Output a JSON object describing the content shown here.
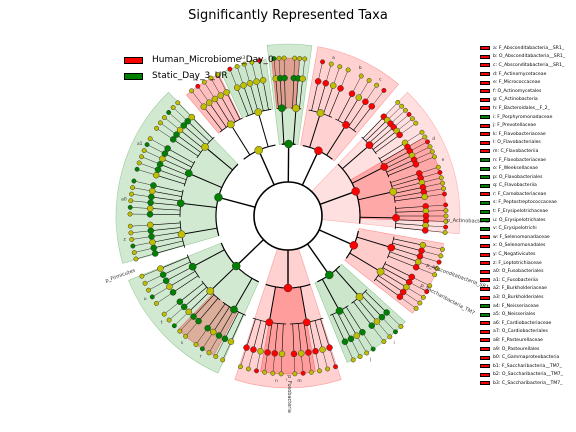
{
  "chart_data": {
    "type": "cladogram",
    "title": "Significantly Represented Taxa",
    "classes": [
      {
        "name": "Human_Microbiome_Day_0",
        "color": "#ff0000"
      },
      {
        "name": "Static_Day_3_UR",
        "color": "#008000"
      }
    ],
    "sector_labels": [
      {
        "text": "p_Firmicutes",
        "cls": 1
      },
      {
        "text": "p_Fusobacteria",
        "cls": 0
      },
      {
        "text": "p_Actinobacteria",
        "cls": 0
      },
      {
        "text": "p_Absconditabacteria_SR1",
        "cls": 0
      },
      {
        "text": "p_Saccharibacteria_TM7",
        "cls": 0
      }
    ],
    "taxa": [
      {
        "code": "a",
        "name": "F_Absconditabacteria__SR1_",
        "cls": 0
      },
      {
        "code": "b",
        "name": "O_Absconditabacteria__SR1_",
        "cls": 0
      },
      {
        "code": "c",
        "name": "C_Absconditabacteria__SR1_",
        "cls": 0
      },
      {
        "code": "d",
        "name": "F_Actinomycetaceae",
        "cls": 0
      },
      {
        "code": "e",
        "name": "F_Micrococcaceae",
        "cls": 0
      },
      {
        "code": "f",
        "name": "O_Actinomycetales",
        "cls": 0
      },
      {
        "code": "g",
        "name": "C_Actinobacteria",
        "cls": 0
      },
      {
        "code": "h",
        "name": "F_Bacteroidales__F_2_",
        "cls": 0
      },
      {
        "code": "i",
        "name": "F_Porphyromonadaceae",
        "cls": 1
      },
      {
        "code": "j",
        "name": "F_Prevotellaceae",
        "cls": 0
      },
      {
        "code": "k",
        "name": "F_Flavobacteriaceae",
        "cls": 0
      },
      {
        "code": "l",
        "name": "O_Flavobacteriales",
        "cls": 0
      },
      {
        "code": "m",
        "name": "C_Flavobacteriia",
        "cls": 0
      },
      {
        "code": "n",
        "name": "F_Flavobacteriaceae",
        "cls": 1
      },
      {
        "code": "o",
        "name": "F_Weeksellaceae",
        "cls": 1
      },
      {
        "code": "p",
        "name": "O_Flavobacteriales",
        "cls": 1
      },
      {
        "code": "q",
        "name": "C_Flavobacteriia",
        "cls": 1
      },
      {
        "code": "r",
        "name": "F_Carnobacteriaceae",
        "cls": 0
      },
      {
        "code": "s",
        "name": "F_Peptostreptococcaceae",
        "cls": 1
      },
      {
        "code": "t",
        "name": "F_Erysipelotrichaceae",
        "cls": 1
      },
      {
        "code": "u",
        "name": "O_Erysipelotrichales",
        "cls": 1
      },
      {
        "code": "v",
        "name": "C_Erysipelotrichi",
        "cls": 1
      },
      {
        "code": "w",
        "name": "F_Selenomonadaceae",
        "cls": 0
      },
      {
        "code": "x",
        "name": "O_Selenomonadales",
        "cls": 0
      },
      {
        "code": "y",
        "name": "C_Negativicutes",
        "cls": 0
      },
      {
        "code": "z",
        "name": "F_Leptotrichiaceae",
        "cls": 0
      },
      {
        "code": "a0",
        "name": "O_Fusobacteriales",
        "cls": 0
      },
      {
        "code": "a1",
        "name": "C_Fusobacteriia",
        "cls": 0
      },
      {
        "code": "a2",
        "name": "F_Burkholderiaceae",
        "cls": 0
      },
      {
        "code": "a3",
        "name": "O_Burkholderiales",
        "cls": 0
      },
      {
        "code": "a4",
        "name": "F_Neisseriaceae",
        "cls": 1
      },
      {
        "code": "a5",
        "name": "O_Neisseriales",
        "cls": 1
      },
      {
        "code": "a6",
        "name": "F_Cardiobacteriaceae",
        "cls": 0
      },
      {
        "code": "a7",
        "name": "O_Cardiobacteriales",
        "cls": 0
      },
      {
        "code": "a8",
        "name": "F_Pasteurellaceae",
        "cls": 0
      },
      {
        "code": "a9",
        "name": "O_Pasteurellales",
        "cls": 0
      },
      {
        "code": "b0",
        "name": "C_Gammaproteobacteria",
        "cls": 0
      },
      {
        "code": "b1",
        "name": "F_Saccharibacteria__TM7_",
        "cls": 0
      },
      {
        "code": "b2",
        "name": "O_Saccharibacteria__TM7_",
        "cls": 0
      },
      {
        "code": "b3",
        "name": "C_Saccharibacteria__TM7_",
        "cls": 0
      }
    ]
  }
}
